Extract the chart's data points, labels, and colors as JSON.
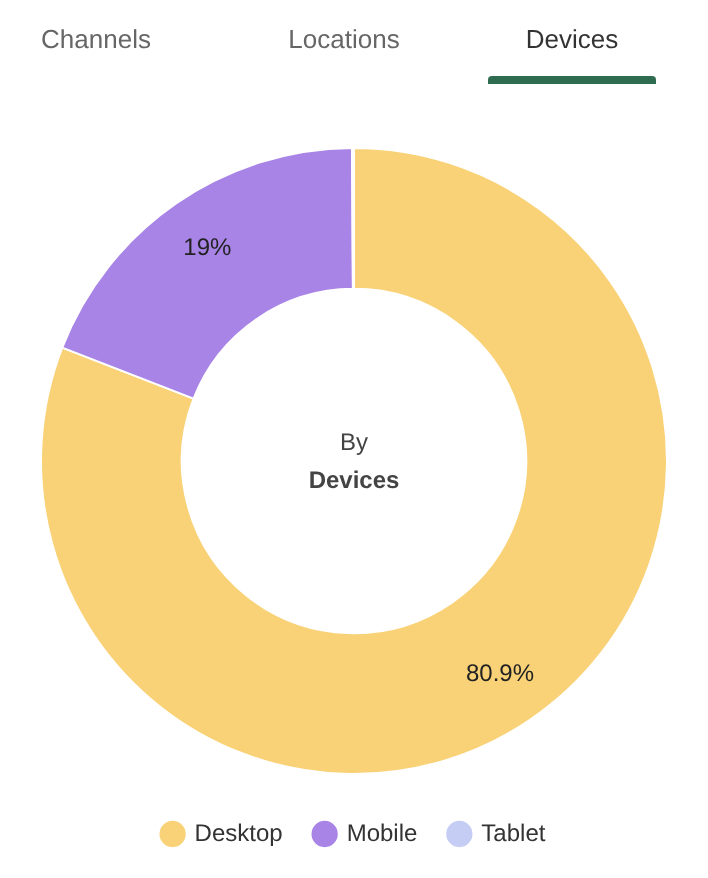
{
  "chart_data": {
    "type": "donut",
    "title": "By",
    "subtitle": "Devices",
    "annotations": [
      "Channels",
      "Locations",
      "Devices"
    ],
    "categories": [
      "Desktop",
      "Mobile",
      "Tablet"
    ],
    "values": [
      80.9,
      19,
      0.1
    ],
    "value_labels": [
      "80.9%",
      "19%",
      null
    ],
    "colors": [
      "#f9d278",
      "#a884e6",
      "#c5cdf5"
    ],
    "legend": "bottom"
  }
}
